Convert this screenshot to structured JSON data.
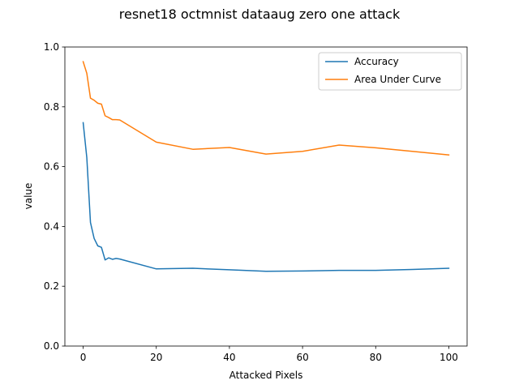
{
  "chart_data": {
    "type": "line",
    "title": "resnet18 octmnist dataaug zero one attack",
    "xlabel": "Attacked Pixels",
    "ylabel": "value",
    "xlim": [
      -5,
      105
    ],
    "ylim": [
      0.0,
      1.0
    ],
    "x_ticks": [
      0,
      20,
      40,
      60,
      80,
      100
    ],
    "y_ticks": [
      0.0,
      0.2,
      0.4,
      0.6,
      0.8,
      1.0
    ],
    "x_tick_labels": [
      "0",
      "20",
      "40",
      "60",
      "80",
      "100"
    ],
    "y_tick_labels": [
      "0.0",
      "0.2",
      "0.4",
      "0.6",
      "0.8",
      "1.0"
    ],
    "grid": false,
    "legend_position": "top-right",
    "x": [
      0,
      1,
      2,
      3,
      4,
      5,
      6,
      7,
      8,
      9,
      10,
      20,
      30,
      40,
      50,
      60,
      70,
      80,
      90,
      100
    ],
    "series": [
      {
        "name": "Accuracy",
        "color": "#1f77b4",
        "values": [
          0.747,
          0.63,
          0.413,
          0.36,
          0.335,
          0.33,
          0.288,
          0.295,
          0.29,
          0.293,
          0.291,
          0.258,
          0.26,
          0.255,
          0.25,
          0.251,
          0.253,
          0.253,
          0.256,
          0.26
        ]
      },
      {
        "name": "Area Under Curve",
        "color": "#ff7f0e",
        "values": [
          0.951,
          0.912,
          0.829,
          0.822,
          0.812,
          0.809,
          0.77,
          0.764,
          0.757,
          0.757,
          0.756,
          0.682,
          0.658,
          0.664,
          0.642,
          0.651,
          0.672,
          0.663,
          0.651,
          0.639
        ]
      }
    ]
  }
}
